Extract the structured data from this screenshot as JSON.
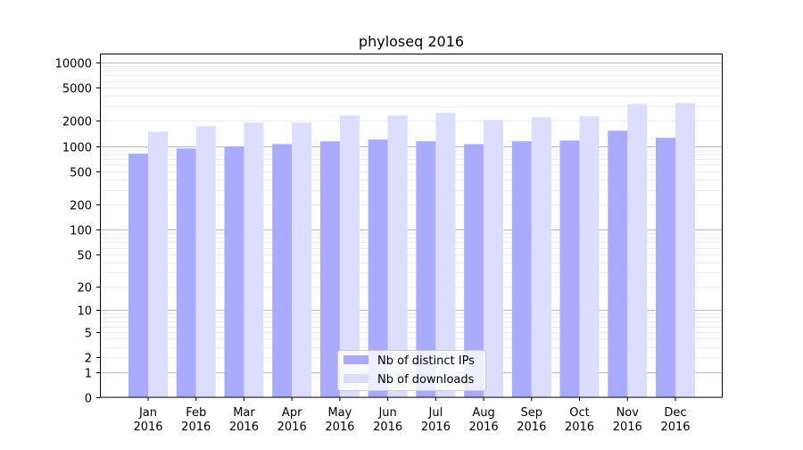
{
  "chart_data": {
    "type": "bar",
    "title": "phyloseq 2016",
    "xlabel": "",
    "ylabel": "",
    "yscale": "log10(1+y)",
    "ylim": [
      0,
      12000
    ],
    "grid": true,
    "legend_position": "bottom-center",
    "categories": [
      "Jan\n2016",
      "Feb\n2016",
      "Mar\n2016",
      "Apr\n2016",
      "May\n2016",
      "Jun\n2016",
      "Jul\n2016",
      "Aug\n2016",
      "Sep\n2016",
      "Oct\n2016",
      "Nov\n2016",
      "Dec\n2016"
    ],
    "yticks": [
      0,
      1,
      2,
      5,
      10,
      20,
      50,
      100,
      200,
      500,
      1000,
      2000,
      5000,
      10000
    ],
    "series": [
      {
        "name": "Nb of distinct IPs",
        "color": "#aaaaff",
        "values": [
          810,
          935,
          985,
          1055,
          1140,
          1195,
          1140,
          1055,
          1140,
          1165,
          1525,
          1255
        ]
      },
      {
        "name": "Nb of downloads",
        "color": "#ddddff",
        "values": [
          1490,
          1725,
          1905,
          1900,
          2315,
          2315,
          2495,
          2050,
          2205,
          2260,
          3185,
          3265
        ]
      }
    ]
  }
}
